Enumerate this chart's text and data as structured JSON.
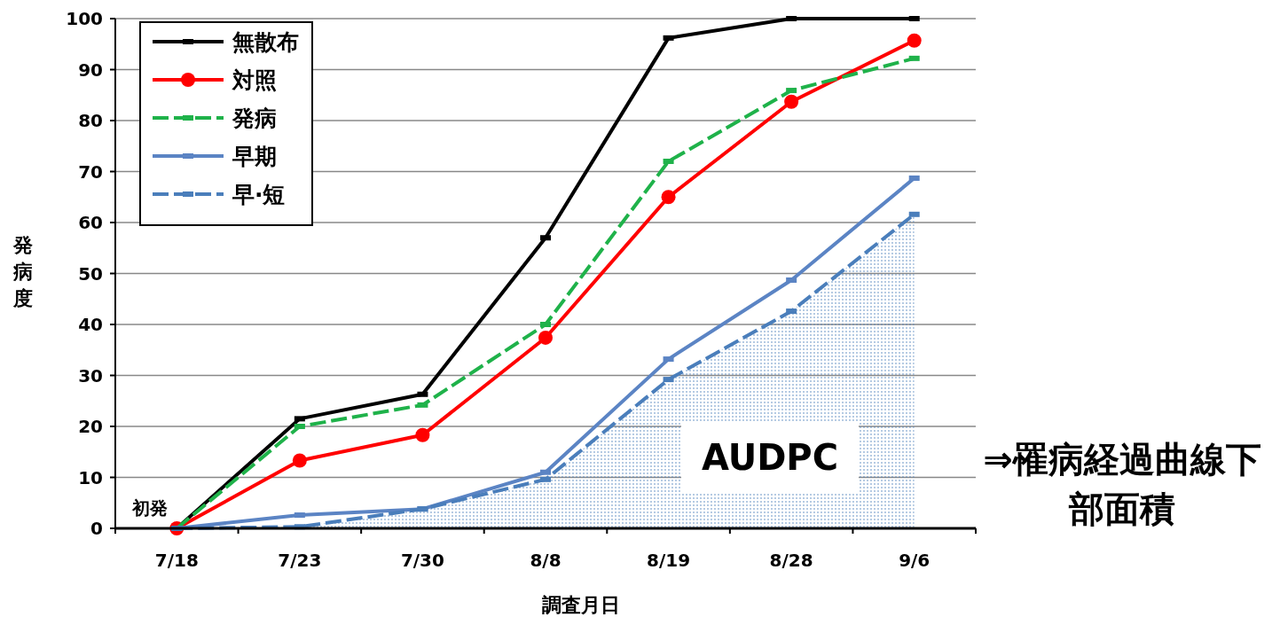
{
  "chart_data": {
    "type": "line",
    "xlabel": "調査月日",
    "ylabel": "発病度",
    "categories": [
      "7/18",
      "7/23",
      "7/30",
      "8/8",
      "8/19",
      "8/28",
      "9/6"
    ],
    "series": [
      {
        "name": "無散布",
        "color": "#000000",
        "marker": "square",
        "line_style": "solid",
        "values": [
          0,
          21.5,
          26.3,
          57,
          96.2,
          100,
          100
        ]
      },
      {
        "name": "対照",
        "color": "#ff0000",
        "marker": "circle",
        "line_style": "solid",
        "values": [
          0,
          13.3,
          18.3,
          37.4,
          65,
          83.7,
          95.7
        ]
      },
      {
        "name": "発病",
        "color": "#1fb24a",
        "marker": "square",
        "line_style": "dashed",
        "values": [
          0,
          20,
          24.2,
          40,
          72,
          85.9,
          92.2
        ]
      },
      {
        "name": "早期",
        "color": "#5b84c4",
        "marker": "square",
        "line_style": "solid",
        "values": [
          0,
          2.6,
          3.8,
          11,
          33.2,
          48.7,
          68.7
        ]
      },
      {
        "name": "早·短",
        "type": "area",
        "color": "#4a7ebb",
        "marker": "square",
        "line_style": "dashed",
        "values": [
          0,
          0.3,
          3.8,
          9.6,
          29.2,
          42.6,
          61.6
        ]
      }
    ],
    "ylim": [
      0,
      100
    ],
    "yticks": [
      0,
      10,
      20,
      30,
      40,
      50,
      60,
      70,
      80,
      90,
      100
    ],
    "grid": "y",
    "legend": "top left",
    "annotations": [
      {
        "text": "初発",
        "x": "7/18",
        "y": 0
      },
      "AUDPC",
      "⇒罹病経過曲線下部面積"
    ]
  }
}
